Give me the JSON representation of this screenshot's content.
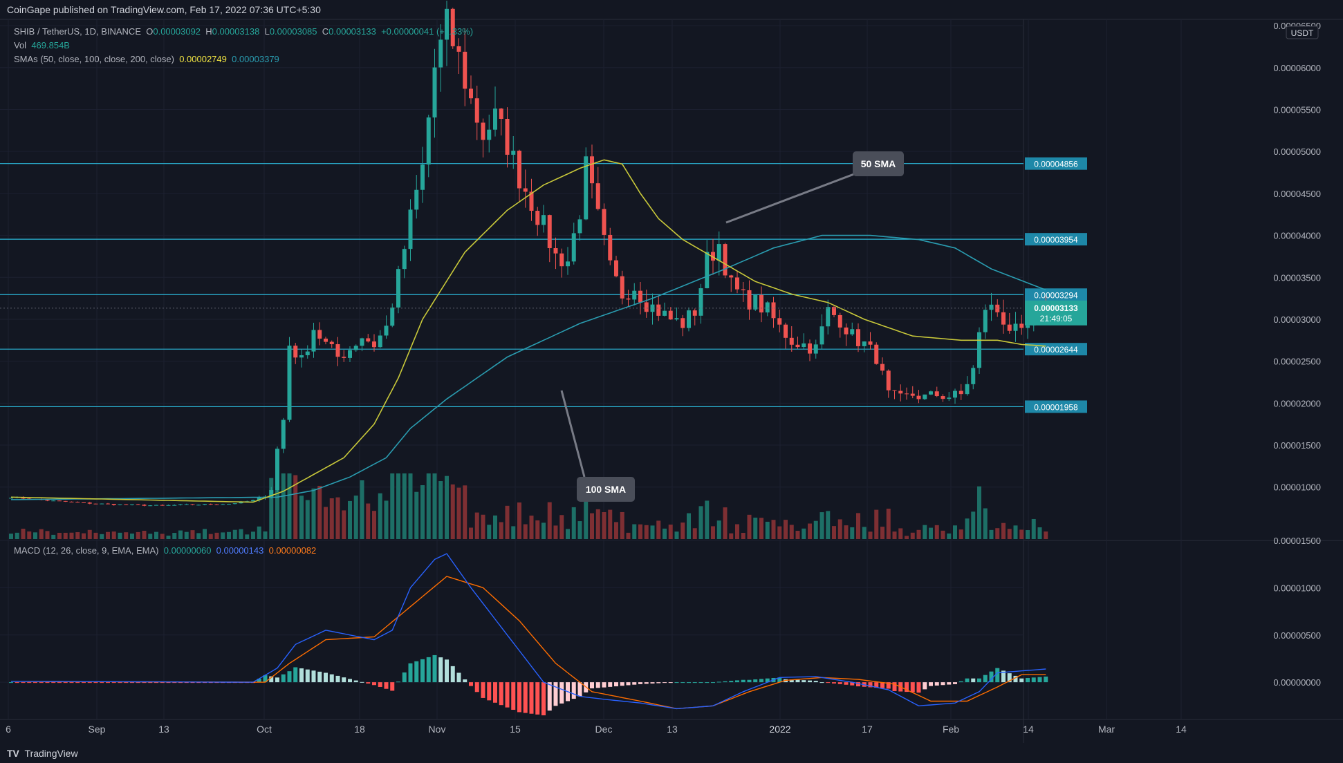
{
  "header": {
    "published": "CoinGape published on TradingView.com, Feb 17, 2022 07:36 UTC+5:30"
  },
  "legend": {
    "symbol": "SHIB / TetherUS, 1D, BINANCE",
    "o_label": "O",
    "o": "0.00003092",
    "h_label": "H",
    "h": "0.00003138",
    "l_label": "L",
    "l": "0.00003085",
    "c_label": "C",
    "c": "0.00003133",
    "change": "+0.00000041 (+1.33%)",
    "vol_label": "Vol",
    "vol": "469.854B",
    "sma_label": "SMAs (50, close, 100, close, 200, close)",
    "sma50": "0.00002749",
    "sma100": "0.00003379",
    "macd_label": "MACD (12, 26, close, 9, EMA, EMA)",
    "macd_hist": "0.00000060",
    "macd_line": "0.00000143",
    "macd_signal": "0.00000082"
  },
  "footer": {
    "brand": "TradingView",
    "logo": "TV"
  },
  "colors": {
    "bg": "#131722",
    "up": "#26a69a",
    "down": "#ef5350",
    "sma50": "#c9c93a",
    "sma100": "#2a9db1",
    "level": "#2bb7d8",
    "macd": "#2962ff",
    "signal": "#ff6d00"
  },
  "chart_data": {
    "type": "candlestick",
    "currency": "USDT",
    "yaxis_ticks": [
      "0.00006500",
      "0.00006000",
      "0.00005500",
      "0.00005000",
      "0.00004500",
      "0.00004000",
      "0.00003500",
      "0.00003000",
      "0.00002500",
      "0.00002000",
      "0.00001500",
      "0.00001000"
    ],
    "ylim": [
      3.8e-06,
      6.575e-05
    ],
    "macd_ticks": [
      "0.00001500",
      "0.00001000",
      "0.00000500",
      "0.00000000"
    ],
    "xaxis_ticks": [
      "6",
      "Sep",
      "13",
      "Oct",
      "18",
      "Nov",
      "15",
      "Dec",
      "13",
      "2022",
      "17",
      "Feb",
      "14",
      "Mar",
      "14"
    ],
    "horizontal_levels": [
      "0.00004856",
      "0.00003954",
      "0.00003294",
      "0.00002644",
      "0.00001958"
    ],
    "last_price": "0.00003133",
    "countdown": "21:49:05",
    "annotations": [
      "50 SMA",
      "100 SMA"
    ],
    "anchors": [
      [
        0,
        8.8e-06
      ],
      [
        6,
        8.4e-06
      ],
      [
        12,
        8.1e-06
      ],
      [
        18,
        7.9e-06
      ],
      [
        24,
        7.8e-06
      ],
      [
        30,
        7.9e-06
      ],
      [
        36,
        8e-06
      ],
      [
        41,
        8.5e-06
      ],
      [
        43,
        9.8e-06
      ],
      [
        44,
        1.45e-05
      ],
      [
        45,
        1.8e-05
      ],
      [
        46,
        2.7e-05
      ],
      [
        48,
        2.5e-05
      ],
      [
        50,
        2.9e-05
      ],
      [
        52,
        2.7e-05
      ],
      [
        54,
        2.55e-05
      ],
      [
        56,
        2.65e-05
      ],
      [
        58,
        2.8e-05
      ],
      [
        60,
        2.7e-05
      ],
      [
        62,
        2.9e-05
      ],
      [
        64,
        3.5e-05
      ],
      [
        66,
        4.2e-05
      ],
      [
        68,
        4.8e-05
      ],
      [
        70,
        6e-05
      ],
      [
        72,
        6.5e-05
      ],
      [
        74,
        6.1e-05
      ],
      [
        76,
        5.6e-05
      ],
      [
        78,
        5.2e-05
      ],
      [
        80,
        5.4e-05
      ],
      [
        82,
        5.1e-05
      ],
      [
        84,
        4.7e-05
      ],
      [
        86,
        4.4e-05
      ],
      [
        88,
        4.1e-05
      ],
      [
        90,
        3.75e-05
      ],
      [
        92,
        3.7e-05
      ],
      [
        94,
        4.3e-05
      ],
      [
        95,
        4.8e-05
      ],
      [
        97,
        4.2e-05
      ],
      [
        99,
        3.6e-05
      ],
      [
        101,
        3.3e-05
      ],
      [
        103,
        3.4e-05
      ],
      [
        105,
        3.2e-05
      ],
      [
        107,
        3.1e-05
      ],
      [
        109,
        3e-05
      ],
      [
        111,
        2.95e-05
      ],
      [
        113,
        3.1e-05
      ],
      [
        115,
        3.7e-05
      ],
      [
        117,
        3.9e-05
      ],
      [
        119,
        3.4e-05
      ],
      [
        121,
        3.25e-05
      ],
      [
        123,
        3.2e-05
      ],
      [
        125,
        3.1e-05
      ],
      [
        127,
        2.9e-05
      ],
      [
        129,
        2.75e-05
      ],
      [
        131,
        2.7e-05
      ],
      [
        133,
        2.65e-05
      ],
      [
        135,
        3.1e-05
      ],
      [
        137,
        3e-05
      ],
      [
        139,
        2.8e-05
      ],
      [
        141,
        2.7e-05
      ],
      [
        143,
        2.55e-05
      ],
      [
        145,
        2.1e-05
      ],
      [
        147,
        2.05e-05
      ],
      [
        149,
        2.1e-05
      ],
      [
        151,
        2.07e-05
      ],
      [
        153,
        2.1e-05
      ],
      [
        155,
        2.08e-05
      ],
      [
        157,
        2.1e-05
      ],
      [
        159,
        2.4e-05
      ],
      [
        160,
        2.8e-05
      ],
      [
        161,
        3.15e-05
      ],
      [
        163,
        3.1e-05
      ],
      [
        165,
        2.9e-05
      ],
      [
        167,
        2.8e-05
      ],
      [
        169,
        3e-05
      ],
      [
        171,
        3.13e-05
      ]
    ],
    "sma50_anchors": [
      [
        0,
        8.8e-06
      ],
      [
        40,
        8.2e-06
      ],
      [
        45,
        9.5e-06
      ],
      [
        55,
        1.35e-05
      ],
      [
        60,
        1.75e-05
      ],
      [
        64,
        2.3e-05
      ],
      [
        68,
        3e-05
      ],
      [
        75,
        3.8e-05
      ],
      [
        82,
        4.3e-05
      ],
      [
        88,
        4.6e-05
      ],
      [
        94,
        4.8e-05
      ],
      [
        98,
        4.9e-05
      ],
      [
        101,
        4.85e-05
      ],
      [
        104,
        4.5e-05
      ],
      [
        107,
        4.2e-05
      ],
      [
        111,
        3.95e-05
      ],
      [
        117,
        3.7e-05
      ],
      [
        123,
        3.45e-05
      ],
      [
        129,
        3.3e-05
      ],
      [
        135,
        3.2e-05
      ],
      [
        141,
        3e-05
      ],
      [
        149,
        2.8e-05
      ],
      [
        157,
        2.75e-05
      ],
      [
        163,
        2.75e-05
      ],
      [
        167,
        2.7e-05
      ],
      [
        171,
        2.68e-05
      ]
    ],
    "sma100_anchors": [
      [
        0,
        8.5e-06
      ],
      [
        44,
        8.8e-06
      ],
      [
        50,
        9.6e-06
      ],
      [
        56,
        1.12e-05
      ],
      [
        62,
        1.35e-05
      ],
      [
        66,
        1.7e-05
      ],
      [
        72,
        2.05e-05
      ],
      [
        82,
        2.55e-05
      ],
      [
        94,
        2.95e-05
      ],
      [
        106,
        3.25e-05
      ],
      [
        118,
        3.6e-05
      ],
      [
        126,
        3.85e-05
      ],
      [
        134,
        4e-05
      ],
      [
        142,
        4e-05
      ],
      [
        150,
        3.95e-05
      ],
      [
        156,
        3.85e-05
      ],
      [
        162,
        3.6e-05
      ],
      [
        171,
        3.35e-05
      ]
    ],
    "macd_anchors": [
      [
        0,
        1e-07
      ],
      [
        40,
        0.0
      ],
      [
        44,
        1.5e-06
      ],
      [
        47,
        4e-06
      ],
      [
        52,
        5.5e-06
      ],
      [
        56,
        5e-06
      ],
      [
        60,
        4.5e-06
      ],
      [
        63,
        5.5e-06
      ],
      [
        66,
        1e-05
      ],
      [
        70,
        1.3e-05
      ],
      [
        72,
        1.36e-05
      ],
      [
        76,
        1e-05
      ],
      [
        82,
        5e-06
      ],
      [
        88,
        0.0
      ],
      [
        94,
        -1.5e-06
      ],
      [
        98,
        -1.8e-06
      ],
      [
        104,
        -2.2e-06
      ],
      [
        110,
        -2.8e-06
      ],
      [
        116,
        -2.5e-06
      ],
      [
        121,
        -1e-06
      ],
      [
        127,
        5e-07
      ],
      [
        133,
        6e-07
      ],
      [
        139,
        0.0
      ],
      [
        145,
        -8e-07
      ],
      [
        150,
        -2.5e-06
      ],
      [
        156,
        -2.2e-06
      ],
      [
        160,
        -1e-06
      ],
      [
        163,
        1e-06
      ],
      [
        167,
        1.2e-06
      ],
      [
        171,
        1.4e-06
      ]
    ],
    "signal_anchors": [
      [
        0,
        1e-07
      ],
      [
        42,
        0.0
      ],
      [
        46,
        2e-06
      ],
      [
        52,
        4.5e-06
      ],
      [
        60,
        4.8e-06
      ],
      [
        66,
        8e-06
      ],
      [
        72,
        1.12e-05
      ],
      [
        78,
        1e-05
      ],
      [
        84,
        6.5e-06
      ],
      [
        90,
        2e-06
      ],
      [
        96,
        -1e-06
      ],
      [
        104,
        -2e-06
      ],
      [
        110,
        -2.8e-06
      ],
      [
        116,
        -2.5e-06
      ],
      [
        122,
        -1e-06
      ],
      [
        128,
        2e-07
      ],
      [
        134,
        5e-07
      ],
      [
        140,
        3e-07
      ],
      [
        146,
        -2e-07
      ],
      [
        152,
        -2e-06
      ],
      [
        158,
        -2e-06
      ],
      [
        163,
        -5e-07
      ],
      [
        167,
        8e-07
      ],
      [
        171,
        8e-07
      ]
    ]
  }
}
